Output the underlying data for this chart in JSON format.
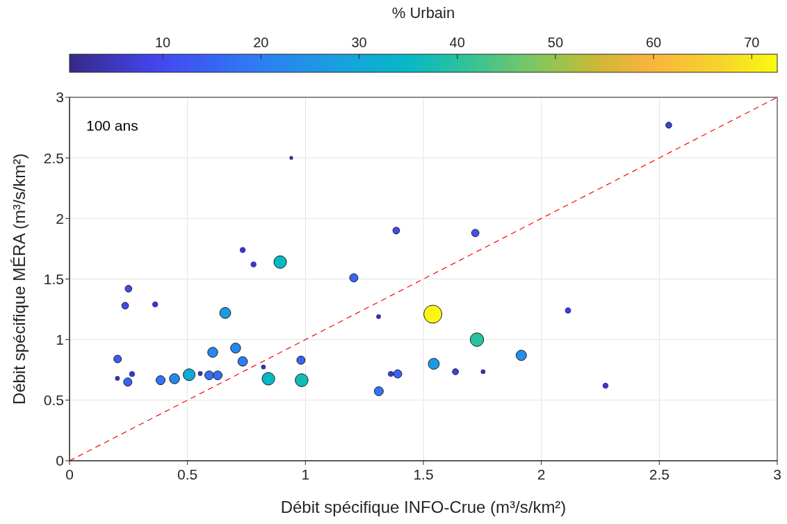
{
  "chart_data": {
    "type": "bubble",
    "xlabel": "Débit spécifique INFO-Crue (m³/s/km²)",
    "ylabel": "Débit spécifique MÉRA (m³/s/km²)",
    "clabel": "% Urbain",
    "annotations": [
      "100 ans"
    ],
    "xlim": [
      0,
      3
    ],
    "ylim": [
      0,
      3
    ],
    "xticks": [
      0,
      0.5,
      1,
      1.5,
      2,
      2.5,
      3
    ],
    "yticks": [
      0,
      0.5,
      1,
      1.5,
      2,
      2.5,
      3
    ],
    "grid": true,
    "clim": [
      0.5,
      72.6
    ],
    "cticks": [
      10,
      20,
      30,
      40,
      50,
      60,
      70
    ],
    "series": [
      {
        "type": "bubble",
        "x": [
          2.54,
          0.94,
          1.385,
          1.72,
          0.734,
          0.78,
          0.893,
          0.25,
          0.236,
          0.363,
          1.205,
          0.66,
          1.31,
          1.54,
          2.113,
          1.727,
          1.915,
          0.204,
          0.607,
          0.704,
          0.734,
          0.822,
          0.981,
          0.203,
          0.265,
          0.247,
          0.386,
          0.445,
          0.507,
          0.554,
          0.592,
          0.628,
          0.843,
          0.984,
          1.311,
          1.362,
          1.391,
          1.544,
          1.636,
          1.753,
          2.272
        ],
        "values": [
          2.77,
          2.5,
          1.9,
          1.88,
          1.74,
          1.62,
          1.64,
          1.42,
          1.28,
          1.29,
          1.51,
          1.22,
          1.19,
          1.21,
          1.24,
          1.0,
          0.87,
          0.84,
          0.895,
          0.93,
          0.82,
          0.774,
          0.83,
          0.68,
          0.715,
          0.65,
          0.665,
          0.677,
          0.71,
          0.72,
          0.705,
          0.705,
          0.677,
          0.665,
          0.574,
          0.717,
          0.717,
          0.8,
          0.735,
          0.735,
          0.62
        ],
        "cvalues": [
          8,
          1,
          10,
          12,
          5,
          5,
          35,
          10,
          10,
          5,
          15,
          27,
          3,
          72,
          6,
          40,
          24,
          13,
          22,
          22,
          20,
          3,
          15,
          3,
          5,
          15,
          18,
          22,
          31,
          3,
          17,
          17,
          35,
          37,
          18,
          5,
          15,
          27,
          8,
          3,
          5
        ],
        "colors": [
          "#4240e0",
          "#362c8d",
          "#4249ef",
          "#3e54f0",
          "#3d38bd",
          "#3d38bd",
          "#05b8c4",
          "#4249ef",
          "#4249ef",
          "#3d38bd",
          "#3864f2",
          "#1b9be2",
          "#3932a5",
          "#f9f711",
          "#3f3bc9",
          "#2ac0a0",
          "#238fe9",
          "#3c59f1",
          "#2887ee",
          "#2887ee",
          "#2d7ef3",
          "#3932a5",
          "#3864f2",
          "#3932a5",
          "#3d38bd",
          "#3864f2",
          "#3274f4",
          "#2887ee",
          "#10aad5",
          "#3932a5",
          "#346ff3",
          "#346ff3",
          "#05b8c4",
          "#13bbb6",
          "#3274f4",
          "#3d38bd",
          "#3864f2",
          "#1b9be2",
          "#4240e0",
          "#3932a5",
          "#3d38bd"
        ],
        "sizes": [
          0.11,
          0.02,
          0.14,
          0.17,
          0.07,
          0.07,
          0.49,
          0.14,
          0.14,
          0.07,
          0.21,
          0.37,
          0.04,
          1,
          0.08,
          0.56,
          0.33,
          0.18,
          0.31,
          0.31,
          0.28,
          0.04,
          0.21,
          0.04,
          0.07,
          0.21,
          0.25,
          0.31,
          0.43,
          0.04,
          0.24,
          0.24,
          0.49,
          0.51,
          0.25,
          0.07,
          0.21,
          0.37,
          0.11,
          0.04,
          0.07
        ]
      },
      {
        "type": "line",
        "x": [
          0,
          3
        ],
        "values": [
          0,
          3
        ],
        "color": "#ff0000",
        "line_style": "dashed"
      }
    ]
  }
}
